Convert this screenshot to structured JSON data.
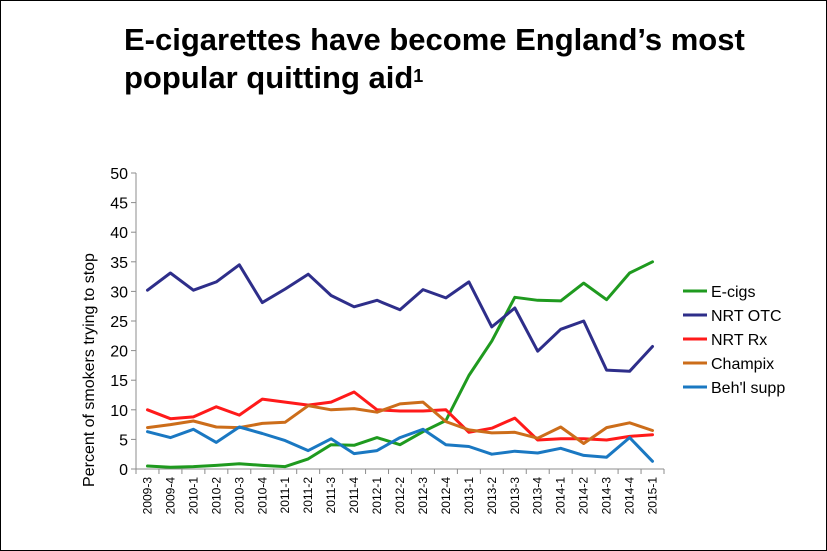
{
  "chart_data": {
    "type": "line",
    "title": "E-cigarettes have become England’s most popular quitting aid",
    "title_superscript": "1",
    "xlabel": "",
    "ylabel": "Percent of smokers trying to stop",
    "ylim": [
      0,
      50
    ],
    "yticks": [
      "0",
      "5",
      "10",
      "15",
      "20",
      "25",
      "30",
      "35",
      "40",
      "45",
      "50"
    ],
    "grid": false,
    "legend_position": "right",
    "categories": [
      "2009-3",
      "2009-4",
      "2010-1",
      "2010-2",
      "2010-3",
      "2010-4",
      "2011-1",
      "2011-2",
      "2011-3",
      "2011-4",
      "2012-1",
      "2012-2",
      "2012-3",
      "2012-4",
      "2013-1",
      "2013-2",
      "2013-3",
      "2013-4",
      "2014-1",
      "2014-2",
      "2014-3",
      "2014-4",
      "2015-1"
    ],
    "series": [
      {
        "name": "E-cigs",
        "color": "#1f9a1f",
        "values": [
          0.5,
          0.3,
          0.4,
          0.6,
          0.9,
          0.6,
          0.4,
          1.7,
          4.1,
          4.0,
          5.3,
          4.1,
          6.3,
          8.2,
          15.8,
          21.6,
          29.0,
          28.5,
          28.4,
          31.4,
          28.6,
          33.1,
          35.0
        ]
      },
      {
        "name": "NRT OTC",
        "color": "#2e2e8a",
        "values": [
          30.2,
          33.1,
          30.2,
          31.6,
          34.5,
          28.1,
          30.4,
          32.9,
          29.3,
          27.4,
          28.5,
          26.9,
          30.3,
          28.9,
          31.6,
          24.0,
          27.2,
          19.9,
          23.6,
          25.0,
          16.7,
          16.5,
          20.7
        ]
      },
      {
        "name": "NRT Rx",
        "color": "#ff1a1a",
        "values": [
          10.0,
          8.5,
          8.8,
          10.5,
          9.1,
          11.8,
          11.3,
          10.8,
          11.3,
          13.0,
          10.0,
          9.8,
          9.8,
          10.0,
          6.2,
          6.9,
          8.6,
          4.9,
          5.1,
          5.1,
          4.9,
          5.5,
          5.8
        ]
      },
      {
        "name": "Champix",
        "color": "#cc6d1a",
        "values": [
          7.0,
          7.5,
          8.1,
          7.1,
          7.0,
          7.7,
          7.9,
          10.7,
          10.0,
          10.2,
          9.6,
          11.0,
          11.3,
          8.0,
          6.6,
          6.1,
          6.2,
          5.2,
          7.1,
          4.3,
          7.0,
          7.8,
          6.5
        ]
      },
      {
        "name": "Beh'l supp",
        "color": "#1a78c2",
        "values": [
          6.3,
          5.3,
          6.7,
          4.5,
          7.1,
          6.0,
          4.8,
          3.1,
          5.1,
          2.6,
          3.1,
          5.3,
          6.7,
          4.1,
          3.8,
          2.5,
          3.0,
          2.7,
          3.5,
          2.3,
          2.0,
          5.3,
          1.3
        ]
      }
    ]
  }
}
